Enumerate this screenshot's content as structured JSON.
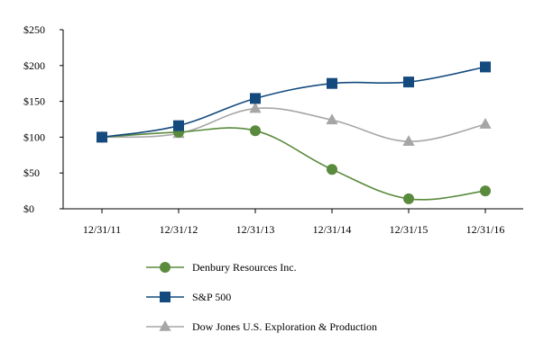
{
  "chart_data": {
    "type": "line",
    "categories": [
      "12/31/11",
      "12/31/12",
      "12/31/13",
      "12/31/14",
      "12/31/15",
      "12/31/16"
    ],
    "ylim": [
      0,
      250
    ],
    "yticks": [
      0,
      50,
      100,
      150,
      200,
      250
    ],
    "ytick_labels": [
      "$0",
      "$50",
      "$100",
      "$150",
      "$200",
      "$250"
    ],
    "grid": false,
    "legend_position": "bottom",
    "series": [
      {
        "name": "Denbury Resources Inc.",
        "marker": "circle",
        "color": "#5a8a3c",
        "values": [
          100,
          107,
          109,
          55,
          14,
          25
        ]
      },
      {
        "name": "S&P 500",
        "marker": "square",
        "color": "#144a7e",
        "values": [
          100,
          116,
          154,
          175,
          177,
          198
        ]
      },
      {
        "name": "Dow Jones U.S. Exploration & Production",
        "marker": "triangle",
        "color": "#a6a6a6",
        "values": [
          100,
          105,
          140,
          124,
          94,
          118
        ]
      }
    ]
  }
}
